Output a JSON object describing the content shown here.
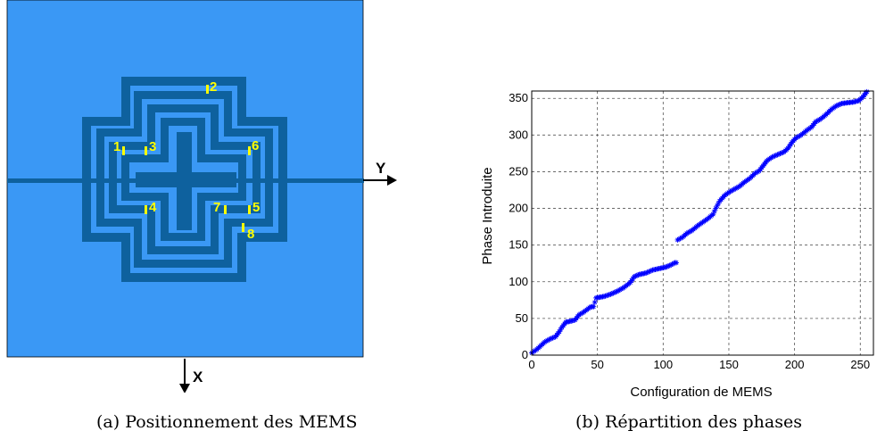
{
  "figure_a": {
    "caption": "(a) Positionnement des MEMS",
    "axis_y_label": "Y",
    "axis_x_label": "X",
    "mems_labels": [
      "1",
      "2",
      "3",
      "4",
      "5",
      "6",
      "7",
      "8"
    ],
    "colors": {
      "substrate": "#3a98f5",
      "metal": "#0e619e",
      "mems": "#ffff00"
    }
  },
  "figure_b": {
    "caption": "(b) Répartition des phases"
  },
  "chart_data": {
    "type": "scatter",
    "xlabel": "Configuration de MEMS",
    "ylabel": "Phase Introduite",
    "xlim": [
      0,
      260
    ],
    "ylim": [
      0,
      360
    ],
    "xticks": [
      "0",
      "50",
      "100",
      "150",
      "200",
      "250"
    ],
    "yticks": [
      "0",
      "50",
      "100",
      "150",
      "200",
      "250",
      "300",
      "350"
    ],
    "grid": true,
    "marker": "*",
    "color": "#0000ff",
    "segments": [
      [
        0,
        3
      ],
      [
        4,
        8
      ],
      [
        7,
        13
      ],
      [
        10,
        18
      ],
      [
        14,
        22
      ],
      [
        18,
        25
      ],
      [
        21,
        32
      ],
      [
        23,
        38
      ],
      [
        26,
        45
      ],
      [
        29,
        46
      ],
      [
        33,
        48
      ],
      [
        36,
        55
      ],
      [
        39,
        58
      ],
      [
        42,
        62
      ],
      [
        45,
        66
      ],
      [
        47,
        66
      ],
      [
        49,
        78
      ],
      [
        55,
        80
      ],
      [
        60,
        83
      ],
      [
        65,
        87
      ],
      [
        70,
        92
      ],
      [
        75,
        99
      ],
      [
        78,
        107
      ],
      [
        82,
        110
      ],
      [
        87,
        112
      ],
      [
        92,
        116
      ],
      [
        97,
        118
      ],
      [
        102,
        120
      ],
      [
        106,
        123
      ],
      [
        109,
        126
      ],
      [
        111,
        157
      ],
      [
        115,
        161
      ],
      [
        118,
        166
      ],
      [
        122,
        170
      ],
      [
        126,
        176
      ],
      [
        130,
        181
      ],
      [
        134,
        186
      ],
      [
        138,
        192
      ],
      [
        140,
        200
      ],
      [
        143,
        210
      ],
      [
        147,
        218
      ],
      [
        151,
        223
      ],
      [
        155,
        227
      ],
      [
        158,
        230
      ],
      [
        162,
        236
      ],
      [
        166,
        241
      ],
      [
        170,
        248
      ],
      [
        173,
        251
      ],
      [
        176,
        258
      ],
      [
        179,
        265
      ],
      [
        183,
        270
      ],
      [
        188,
        274
      ],
      [
        192,
        277
      ],
      [
        195,
        282
      ],
      [
        198,
        290
      ],
      [
        201,
        296
      ],
      [
        205,
        300
      ],
      [
        209,
        306
      ],
      [
        213,
        311
      ],
      [
        216,
        318
      ],
      [
        220,
        322
      ],
      [
        224,
        328
      ],
      [
        228,
        335
      ],
      [
        232,
        340
      ],
      [
        236,
        343
      ],
      [
        240,
        344
      ],
      [
        245,
        345
      ],
      [
        249,
        347
      ],
      [
        252,
        352
      ],
      [
        255,
        359
      ]
    ]
  }
}
